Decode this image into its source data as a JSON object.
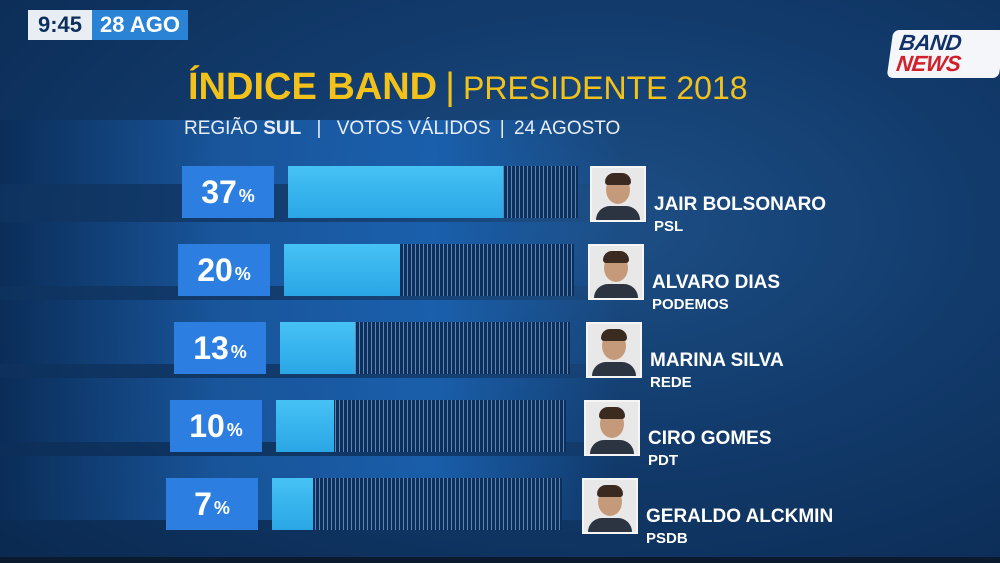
{
  "header": {
    "time": "9:45",
    "date": "28 AGO"
  },
  "logo": {
    "line1": "BAND",
    "line2": "NEWS"
  },
  "title": {
    "main": "ÍNDICE BAND",
    "separator": "|",
    "secondary": "PRESIDENTE 2018"
  },
  "subtitle": {
    "region_label": "REGIÃO",
    "region": "SUL",
    "sep1": "|",
    "votes": "VOTOS VÁLIDOS",
    "sep2": "|",
    "date": "24 AGOSTO"
  },
  "chart_data": {
    "type": "bar",
    "orientation": "horizontal",
    "categories": [
      "JAIR BOLSONARO",
      "ALVARO DIAS",
      "MARINA SILVA",
      "CIRO GOMES",
      "GERALDO ALCKMIN"
    ],
    "parties": [
      "PSL",
      "PODEMOS",
      "REDE",
      "PDT",
      "PSDB"
    ],
    "values": [
      37,
      20,
      13,
      10,
      7
    ],
    "value_unit": "%",
    "xlim": [
      0,
      50
    ],
    "colors": {
      "bar": "#38b6f0",
      "label_box": "#2c7fe0",
      "title": "#f3c21a"
    }
  }
}
